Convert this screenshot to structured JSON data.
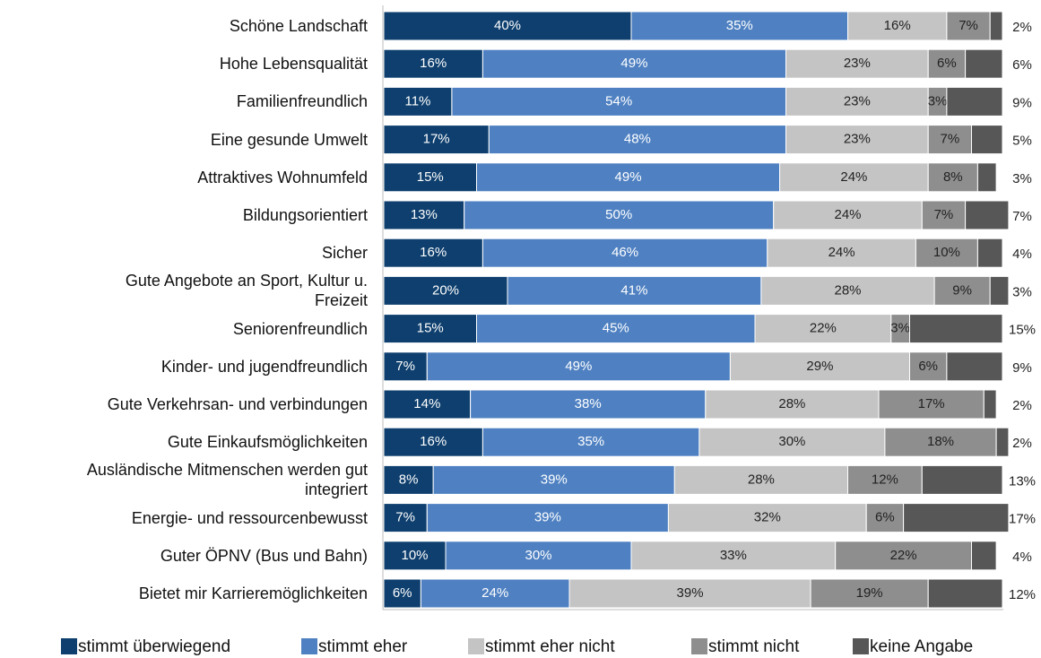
{
  "chart_data": {
    "type": "stacked_barh",
    "categories": [
      "Schöne Landschaft",
      "Hohe Lebensqualität",
      "Familienfreundlich",
      "Eine gesunde Umwelt",
      "Attraktives Wohnumfeld",
      "Bildungsorientiert",
      "Sicher",
      "Gute Angebote an Sport, Kultur u.\nFreizeit",
      "Seniorenfreundlich",
      "Kinder- und jugendfreundlich",
      "Gute Verkehrsan- und verbindungen",
      "Gute Einkaufsmöglichkeiten",
      "Ausländische Mitmenschen werden gut\nintegriert",
      "Energie- und  ressourcenbewusst",
      "Guter ÖPNV (Bus und Bahn)",
      "Bietet mir Karrieremöglichkeiten"
    ],
    "xlim": [
      0,
      100
    ],
    "series": [
      {
        "name": "stimmt überwiegend",
        "color": "#0e3f6e",
        "values": [
          40,
          16,
          11,
          17,
          15,
          13,
          16,
          20,
          15,
          7,
          14,
          16,
          8,
          7,
          10,
          6
        ],
        "value_labels": [
          "40%",
          "16%",
          "11%",
          "17%",
          "15%",
          "13%",
          "16%",
          "20%",
          "15%",
          "7%",
          "14%",
          "16%",
          "8%",
          "7%",
          "10%",
          "6%"
        ]
      },
      {
        "name": "stimmt eher",
        "color": "#4f81c2",
        "values": [
          35,
          49,
          54,
          48,
          49,
          50,
          46,
          41,
          45,
          49,
          38,
          35,
          39,
          39,
          30,
          24
        ],
        "value_labels": [
          "35%",
          "49%",
          "54%",
          "48%",
          "49%",
          "50%",
          "46%",
          "41%",
          "45%",
          "49%",
          "38%",
          "35%",
          "39%",
          "39%",
          "30%",
          "24%"
        ]
      },
      {
        "name": "stimmt eher nicht",
        "color": "#c4c4c4",
        "values": [
          16,
          23,
          23,
          23,
          24,
          24,
          24,
          28,
          22,
          29,
          28,
          30,
          28,
          32,
          33,
          39
        ],
        "value_labels": [
          "16%",
          "23%",
          "23%",
          "23%",
          "24%",
          "24%",
          "24%",
          "28%",
          "22%",
          "29%",
          "28%",
          "30%",
          "28%",
          "32%",
          "33%",
          "39%"
        ]
      },
      {
        "name": "stimmt nicht",
        "color": "#8e8e8e",
        "values": [
          7,
          6,
          3,
          7,
          8,
          7,
          10,
          9,
          3,
          6,
          17,
          18,
          12,
          6,
          22,
          19
        ],
        "value_labels": [
          "7%",
          "6%",
          "3%",
          "7%",
          "8%",
          "7%",
          "10%",
          "9%",
          "3%",
          "6%",
          "17%",
          "18%",
          "12%",
          "6%",
          "22%",
          "19%"
        ]
      },
      {
        "name": "keine Angabe",
        "color": "#575757",
        "values": [
          2,
          6,
          9,
          5,
          3,
          7,
          4,
          3,
          15,
          9,
          2,
          2,
          13,
          17,
          4,
          12
        ],
        "value_labels": [
          "2%",
          "6%",
          "9%",
          "5%",
          "3%",
          "7%",
          "4%",
          "3%",
          "15%",
          "9%",
          "2%",
          "2%",
          "13%",
          "17%",
          "4%",
          "12%"
        ]
      }
    ]
  }
}
